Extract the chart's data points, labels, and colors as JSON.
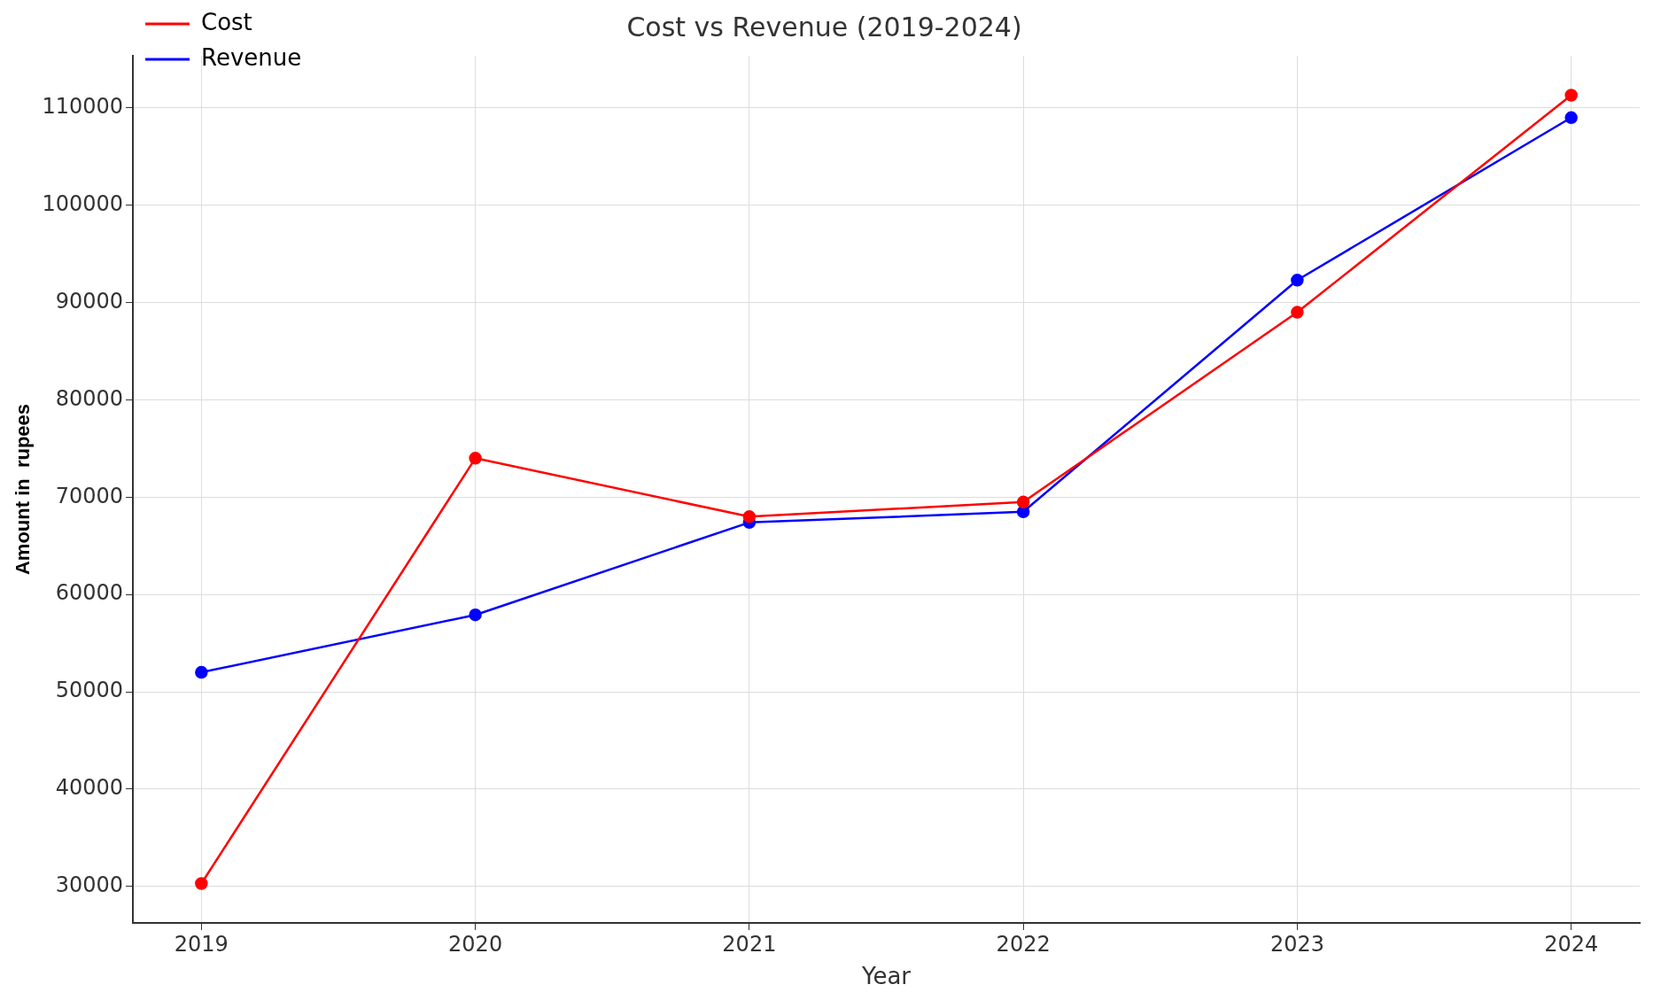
{
  "chart_data": {
    "type": "line",
    "title": "Cost vs Revenue (2019-2024)",
    "xlabel": "Year",
    "ylabel": "Amount in  rupees",
    "x": [
      2019,
      2020,
      2021,
      2022,
      2023,
      2024
    ],
    "series": [
      {
        "name": "Cost",
        "color": "#ff0000",
        "values": [
          30300,
          74000,
          68000,
          69500,
          89000,
          111300
        ]
      },
      {
        "name": "Revenue",
        "color": "#0000ff",
        "values": [
          52000,
          57900,
          67400,
          68500,
          92300,
          109000
        ]
      }
    ],
    "xlim": [
      2018.75,
      2024.25
    ],
    "xticks": [
      2019,
      2020,
      2021,
      2022,
      2023,
      2024
    ],
    "ylim": [
      26250,
      115350
    ],
    "yticks": [
      30000,
      40000,
      50000,
      60000,
      70000,
      80000,
      90000,
      100000,
      110000
    ],
    "grid": true,
    "legend": "top left",
    "marker": "circle",
    "line_style": "solid"
  }
}
